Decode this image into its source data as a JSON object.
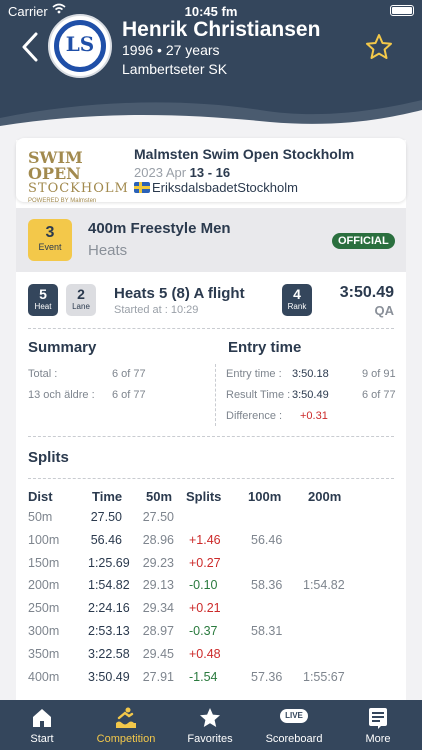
{
  "status_bar": {
    "carrier": "Carrier",
    "time": "10:45 fm"
  },
  "athlete": {
    "name": "Henrik Christiansen",
    "born": "1996 • 27 years",
    "club": "Lambertseter SK",
    "club_logo_text": "LS"
  },
  "meet": {
    "logo_line1": "SWIM OPEN",
    "logo_line2": "STOCKHOLM",
    "logo_line3": "POWERED BY Malmsten",
    "title": "Malmsten Swim Open Stockholm",
    "year_month": "2023 Apr ",
    "days": "13 - 16",
    "venue": "EriksdalsbadetStockholm"
  },
  "event": {
    "number": "3",
    "number_label": "Event",
    "name": "400m Freestyle Men",
    "round": "Heats",
    "status": "OFFICIAL"
  },
  "heat": {
    "heat_number": "5",
    "heat_label": "Heat",
    "lane_number": "2",
    "lane_label": "Lane",
    "title": "Heats 5 (8) A flight",
    "started": "Started at : 10:29",
    "rank": "4",
    "rank_label": "Rank",
    "time": "3:50.49",
    "qualification": "QA"
  },
  "summary": {
    "title": "Summary",
    "rows": [
      {
        "label": "Total :",
        "value": "6 of 77"
      },
      {
        "label": "13 och äldre :",
        "value": "6 of 77"
      }
    ]
  },
  "entry": {
    "title": "Entry time",
    "rows": [
      {
        "label": "Entry time :",
        "value": "3:50.18",
        "extra": "9 of 91"
      },
      {
        "label": "Result Time :",
        "value": "3:50.49",
        "extra": "6 of 77"
      },
      {
        "label": "Difference :",
        "value": "+0.31",
        "extra": ""
      }
    ]
  },
  "splits": {
    "title": "Splits",
    "headers": {
      "dist": "Dist",
      "time": "Time",
      "s50": "50m",
      "splits": "Splits",
      "s100": "100m",
      "s200": "200m"
    },
    "rows": [
      {
        "dist": "50m",
        "time": "27.50",
        "s50": "27.50",
        "split": "",
        "s100": "",
        "s200": ""
      },
      {
        "dist": "100m",
        "time": "56.46",
        "s50": "28.96",
        "split": "+1.46",
        "s100": "56.46",
        "s200": ""
      },
      {
        "dist": "150m",
        "time": "1:25.69",
        "s50": "29.23",
        "split": "+0.27",
        "s100": "",
        "s200": ""
      },
      {
        "dist": "200m",
        "time": "1:54.82",
        "s50": "29.13",
        "split": "-0.10",
        "s100": "58.36",
        "s200": "1:54.82"
      },
      {
        "dist": "250m",
        "time": "2:24.16",
        "s50": "29.34",
        "split": "+0.21",
        "s100": "",
        "s200": ""
      },
      {
        "dist": "300m",
        "time": "2:53.13",
        "s50": "28.97",
        "split": "-0.37",
        "s100": "58.31",
        "s200": ""
      },
      {
        "dist": "350m",
        "time": "3:22.58",
        "s50": "29.45",
        "split": "+0.48",
        "s100": "",
        "s200": ""
      },
      {
        "dist": "400m",
        "time": "3:50.49",
        "s50": "27.91",
        "split": "-1.54",
        "s100": "57.36",
        "s200": "1:55:67"
      }
    ]
  },
  "tabs": {
    "start": "Start",
    "competition": "Competition",
    "favorites": "Favorites",
    "scoreboard": "Scoreboard",
    "scoreboard_badge": "LIVE",
    "more": "More"
  },
  "colors": {
    "header": "#34465c",
    "accent": "#f3c84a",
    "official": "#2a6f3e",
    "positive_split": "#cc2a2a",
    "negative_split": "#2a7a3e"
  }
}
